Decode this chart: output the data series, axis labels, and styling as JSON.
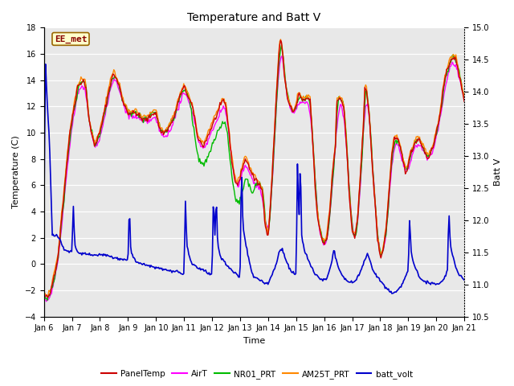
{
  "title": "Temperature and Batt V",
  "xlabel": "Time",
  "ylabel_left": "Temperature (C)",
  "ylabel_right": "Batt V",
  "ylim_left": [
    -4,
    18
  ],
  "ylim_right": [
    10.5,
    15.0
  ],
  "yticks_left": [
    -4,
    -2,
    0,
    2,
    4,
    6,
    8,
    10,
    12,
    14,
    16,
    18
  ],
  "yticks_right": [
    10.5,
    11.0,
    11.5,
    12.0,
    12.5,
    13.0,
    13.5,
    14.0,
    14.5,
    15.0
  ],
  "xtick_labels": [
    "Jan 6",
    "Jan 7",
    "Jan 8",
    "Jan 9",
    "Jan 10",
    "Jan 11",
    "Jan 12",
    "Jan 13",
    "Jan 14",
    "Jan 15",
    "Jan 16",
    "Jan 17",
    "Jan 18",
    "Jan 19",
    "Jan 20",
    "Jan 21"
  ],
  "fig_bg_color": "#ffffff",
  "plot_bg_color": "#e8e8e8",
  "grid_color": "#ffffff",
  "legend_label": "EE_met",
  "series_colors": {
    "PanelTemp": "#cc0000",
    "AirT": "#ff00ff",
    "NR01_PRT": "#00bb00",
    "AM25T_PRT": "#ff8800",
    "batt_volt": "#0000cc"
  },
  "series_linewidths": {
    "PanelTemp": 1.0,
    "AirT": 1.0,
    "NR01_PRT": 1.0,
    "AM25T_PRT": 1.0,
    "batt_volt": 1.2
  },
  "n_points": 500,
  "title_fontsize": 10,
  "axis_label_fontsize": 8,
  "tick_fontsize": 7
}
